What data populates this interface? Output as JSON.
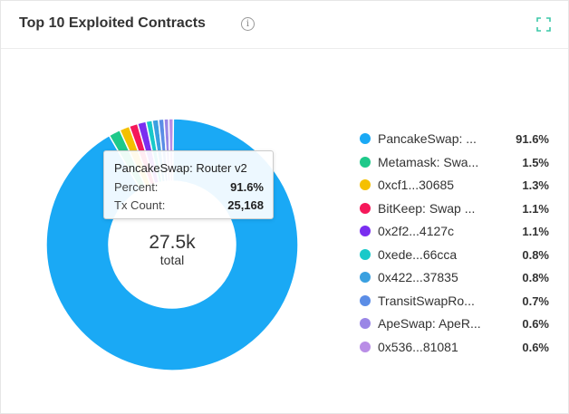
{
  "header": {
    "title": "Top 10 Exploited Contracts",
    "info_icon": "info-icon",
    "expand_icon": "expand-icon"
  },
  "colors": {
    "accent": "#1aa9f5"
  },
  "center": {
    "value": "27.5k",
    "label": "total"
  },
  "tooltip": {
    "title": "PancakeSwap: Router v2",
    "percent_label": "Percent:",
    "percent_value": "91.6%",
    "count_label": "Tx Count:",
    "count_value": "25,168"
  },
  "legend": [
    {
      "name": "PancakeSwap: ...",
      "pct": "91.6%",
      "color": "#1aa9f5"
    },
    {
      "name": "Metamask: Swa...",
      "pct": "1.5%",
      "color": "#1ec98a"
    },
    {
      "name": "0xcf1...30685",
      "pct": "1.3%",
      "color": "#f5c000"
    },
    {
      "name": "BitKeep: Swap ...",
      "pct": "1.1%",
      "color": "#f5185a"
    },
    {
      "name": "0x2f2...4127c",
      "pct": "1.1%",
      "color": "#7a2ef0"
    },
    {
      "name": "0xede...66cca",
      "pct": "0.8%",
      "color": "#18c9c9"
    },
    {
      "name": "0x422...37835",
      "pct": "0.8%",
      "color": "#3aa0e0"
    },
    {
      "name": "TransitSwapRo...",
      "pct": "0.7%",
      "color": "#5b8de6"
    },
    {
      "name": "ApeSwap: ApeR...",
      "pct": "0.6%",
      "color": "#9a86e6"
    },
    {
      "name": "0x536...81081",
      "pct": "0.6%",
      "color": "#b98de6"
    }
  ],
  "chart_data": {
    "type": "pie",
    "title": "Top 10 Exploited Contracts",
    "labels": [
      "PancakeSwap: ...",
      "Metamask: Swa...",
      "0xcf1...30685",
      "BitKeep: Swap ...",
      "0x2f2...4127c",
      "0xede...66cca",
      "0x422...37835",
      "TransitSwapRo...",
      "ApeSwap: ApeR...",
      "0x536...81081"
    ],
    "values": [
      91.6,
      1.5,
      1.3,
      1.1,
      1.1,
      0.8,
      0.8,
      0.7,
      0.6,
      0.6
    ],
    "total": "27.5k"
  }
}
